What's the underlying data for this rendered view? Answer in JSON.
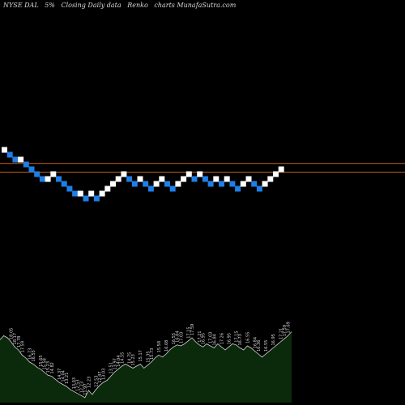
{
  "header": {
    "symbol": "NYSE DAL",
    "pct": "5%",
    "note": "Closing Daily data",
    "kind": "Renko",
    "site": "charts MunafaSutra.com"
  },
  "chart_data": {
    "type": "renko",
    "brick_size_pct": 5,
    "colors": {
      "up": "#ffffff",
      "down": "#1e7fe6",
      "line": "#c8641e",
      "volume_fill": "#0b2a0b",
      "volume_stroke": "#d8d8d8"
    },
    "horizontal_lines": [
      17.2,
      15.4
    ],
    "bricks": [
      {
        "level": 20,
        "dir": "up"
      },
      {
        "level": 19,
        "dir": "down"
      },
      {
        "level": 18,
        "dir": "down"
      },
      {
        "level": 18,
        "dir": "up"
      },
      {
        "level": 17,
        "dir": "down"
      },
      {
        "level": 16,
        "dir": "down"
      },
      {
        "level": 15,
        "dir": "down"
      },
      {
        "level": 14,
        "dir": "down"
      },
      {
        "level": 14,
        "dir": "up"
      },
      {
        "level": 15,
        "dir": "up"
      },
      {
        "level": 14,
        "dir": "down"
      },
      {
        "level": 13,
        "dir": "down"
      },
      {
        "level": 12,
        "dir": "down"
      },
      {
        "level": 11,
        "dir": "down"
      },
      {
        "level": 11,
        "dir": "up"
      },
      {
        "level": 10,
        "dir": "down"
      },
      {
        "level": 11,
        "dir": "up"
      },
      {
        "level": 10,
        "dir": "down"
      },
      {
        "level": 11,
        "dir": "up"
      },
      {
        "level": 12,
        "dir": "up"
      },
      {
        "level": 13,
        "dir": "up"
      },
      {
        "level": 14,
        "dir": "up"
      },
      {
        "level": 15,
        "dir": "up"
      },
      {
        "level": 14,
        "dir": "down"
      },
      {
        "level": 13,
        "dir": "down"
      },
      {
        "level": 14,
        "dir": "up"
      },
      {
        "level": 13,
        "dir": "down"
      },
      {
        "level": 12,
        "dir": "down"
      },
      {
        "level": 13,
        "dir": "up"
      },
      {
        "level": 14,
        "dir": "up"
      },
      {
        "level": 13,
        "dir": "down"
      },
      {
        "level": 12,
        "dir": "down"
      },
      {
        "level": 13,
        "dir": "up"
      },
      {
        "level": 14,
        "dir": "up"
      },
      {
        "level": 15,
        "dir": "up"
      },
      {
        "level": 14,
        "dir": "down"
      },
      {
        "level": 15,
        "dir": "up"
      },
      {
        "level": 14,
        "dir": "down"
      },
      {
        "level": 13,
        "dir": "down"
      },
      {
        "level": 14,
        "dir": "up"
      },
      {
        "level": 13,
        "dir": "down"
      },
      {
        "level": 14,
        "dir": "up"
      },
      {
        "level": 13,
        "dir": "down"
      },
      {
        "level": 12,
        "dir": "down"
      },
      {
        "level": 13,
        "dir": "up"
      },
      {
        "level": 14,
        "dir": "up"
      },
      {
        "level": 13,
        "dir": "down"
      },
      {
        "level": 12,
        "dir": "down"
      },
      {
        "level": 13,
        "dir": "up"
      },
      {
        "level": 14,
        "dir": "up"
      },
      {
        "level": 15,
        "dir": "up"
      },
      {
        "level": 16,
        "dir": "up"
      }
    ],
    "volume": [
      62,
      66,
      64,
      60,
      55,
      52,
      47,
      44,
      40,
      38,
      35,
      33,
      30,
      27,
      26,
      23,
      20,
      18,
      16,
      13,
      11,
      9,
      7,
      5,
      12,
      8,
      13,
      17,
      20,
      22,
      26,
      30,
      33,
      36,
      38,
      36,
      34,
      36,
      38,
      34,
      37,
      40,
      44,
      47,
      45,
      48,
      52,
      55,
      57,
      56,
      58,
      61,
      64,
      60,
      57,
      55,
      58,
      56,
      54,
      58,
      55,
      52,
      55,
      58,
      57,
      54,
      52,
      56,
      54,
      51,
      48,
      45,
      48,
      51,
      54,
      57,
      60,
      63,
      66,
      70
    ],
    "volume_labels": [
      {
        "i": 3,
        "text": "18.05"
      },
      {
        "i": 4,
        "text": "18.17"
      },
      {
        "i": 5,
        "text": "17.78"
      },
      {
        "i": 6,
        "text": "17.59"
      },
      {
        "i": 8,
        "text": "16.73"
      },
      {
        "i": 9,
        "text": "16.55"
      },
      {
        "i": 11,
        "text": "15.65"
      },
      {
        "i": 12,
        "text": "15.58"
      },
      {
        "i": 13,
        "text": "15.23"
      },
      {
        "i": 14,
        "text": "14.82"
      },
      {
        "i": 16,
        "text": "14.37"
      },
      {
        "i": 17,
        "text": "14.04"
      },
      {
        "i": 18,
        "text": "13.21"
      },
      {
        "i": 20,
        "text": "13.03"
      },
      {
        "i": 21,
        "text": "12.53"
      },
      {
        "i": 22,
        "text": "12.23"
      },
      {
        "i": 23,
        "text": "11.97"
      },
      {
        "i": 24,
        "text": "12.23"
      },
      {
        "i": 26,
        "text": "12.53"
      },
      {
        "i": 27,
        "text": "12.47"
      },
      {
        "i": 28,
        "text": "13.03"
      },
      {
        "i": 30,
        "text": "13.51"
      },
      {
        "i": 31,
        "text": "13.97"
      },
      {
        "i": 32,
        "text": "14.04"
      },
      {
        "i": 33,
        "text": "14.55"
      },
      {
        "i": 35,
        "text": "14.75"
      },
      {
        "i": 36,
        "text": "15.23"
      },
      {
        "i": 38,
        "text": "15.17"
      },
      {
        "i": 40,
        "text": "15.35"
      },
      {
        "i": 41,
        "text": "15.73"
      },
      {
        "i": 43,
        "text": "15.58"
      },
      {
        "i": 45,
        "text": "16.08"
      },
      {
        "i": 47,
        "text": "16.55"
      },
      {
        "i": 48,
        "text": "16.84"
      },
      {
        "i": 49,
        "text": "17.03"
      },
      {
        "i": 51,
        "text": "17.15"
      },
      {
        "i": 52,
        "text": "17.59"
      },
      {
        "i": 54,
        "text": "17.21"
      },
      {
        "i": 55,
        "text": "16.95"
      },
      {
        "i": 57,
        "text": "17.03"
      },
      {
        "i": 58,
        "text": "16.84"
      },
      {
        "i": 60,
        "text": "17.26"
      },
      {
        "i": 62,
        "text": "16.95"
      },
      {
        "i": 64,
        "text": "17.15"
      },
      {
        "i": 65,
        "text": "16.73"
      },
      {
        "i": 67,
        "text": "16.55"
      },
      {
        "i": 69,
        "text": "16.84"
      },
      {
        "i": 70,
        "text": "16.36"
      },
      {
        "i": 72,
        "text": "16.55"
      },
      {
        "i": 74,
        "text": "16.95"
      },
      {
        "i": 76,
        "text": "17.21"
      },
      {
        "i": 77,
        "text": "17.59"
      },
      {
        "i": 78,
        "text": "17.69"
      }
    ]
  }
}
